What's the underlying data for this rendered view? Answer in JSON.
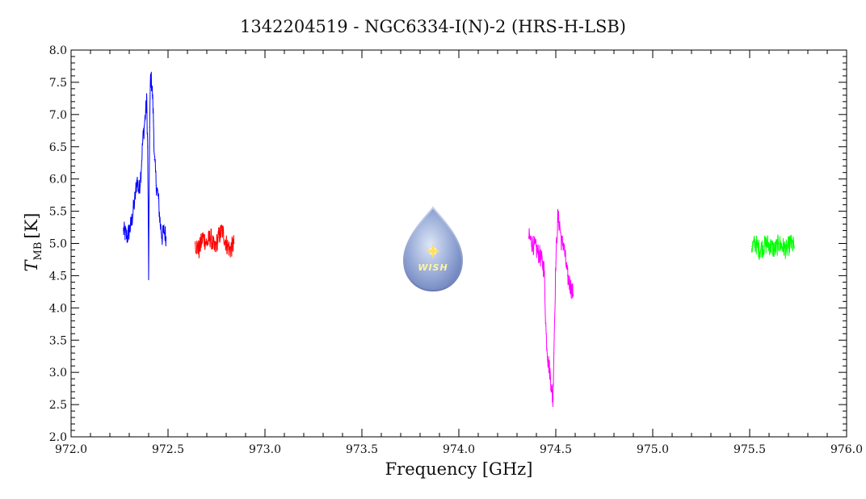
{
  "chart_data": {
    "type": "line",
    "title": "1342204519 - NGC6334-I(N)-2 (HRS-H-LSB)",
    "xlabel": "Frequency [GHz]",
    "ylabel": "T",
    "ylabel_sub": "MB",
    "ylabel_unit": "[K]",
    "xlim": [
      972.0,
      976.0
    ],
    "ylim": [
      2.0,
      8.0
    ],
    "x_ticks": [
      "972.0",
      "972.5",
      "973.0",
      "973.5",
      "974.0",
      "974.5",
      "975.0",
      "975.5",
      "976.0"
    ],
    "y_ticks": [
      "2.0",
      "2.5",
      "3.0",
      "3.5",
      "4.0",
      "4.5",
      "5.0",
      "5.5",
      "6.0",
      "6.5",
      "7.0",
      "7.5",
      "8.0"
    ],
    "grid": false,
    "logo": {
      "text": "WISH"
    },
    "series": [
      {
        "color": "#0000ff",
        "x": [
          972.27,
          972.29,
          972.31,
          972.33,
          972.34,
          972.35,
          972.36,
          972.37,
          972.38,
          972.39,
          972.395,
          972.4,
          972.405,
          972.41,
          972.415,
          972.42,
          972.425,
          972.43,
          972.44,
          972.45,
          972.46,
          972.47,
          972.48,
          972.49
        ],
        "y": [
          5.2,
          5.1,
          5.3,
          5.7,
          6.0,
          5.8,
          6.1,
          6.6,
          6.9,
          7.2,
          6.5,
          4.5,
          6.8,
          7.6,
          7.5,
          7.3,
          6.9,
          6.3,
          5.9,
          5.7,
          5.3,
          5.1,
          5.2,
          5.1
        ]
      },
      {
        "color": "#ff0000",
        "x": [
          972.64,
          972.66,
          972.68,
          972.7,
          972.72,
          972.74,
          972.76,
          972.78,
          972.8,
          972.82,
          972.84
        ],
        "y": [
          5.0,
          4.9,
          5.1,
          5.0,
          5.1,
          4.9,
          5.1,
          5.2,
          5.0,
          4.9,
          5.0
        ]
      },
      {
        "color": "#ff00ff",
        "x": [
          974.36,
          974.38,
          974.4,
          974.42,
          974.44,
          974.45,
          974.46,
          974.47,
          974.48,
          974.485,
          974.49,
          974.5,
          974.51,
          974.52,
          974.53,
          974.54,
          974.56,
          974.58,
          974.59
        ],
        "y": [
          5.1,
          5.0,
          4.9,
          4.8,
          4.6,
          3.6,
          3.2,
          3.0,
          2.7,
          2.55,
          3.3,
          4.7,
          5.4,
          5.3,
          5.0,
          5.0,
          4.5,
          4.3,
          4.2
        ]
      },
      {
        "color": "#00ff00",
        "x": [
          975.51,
          975.53,
          975.55,
          975.57,
          975.59,
          975.61,
          975.63,
          975.65,
          975.67,
          975.69,
          975.71,
          975.73
        ],
        "y": [
          4.95,
          5.0,
          4.9,
          4.95,
          5.0,
          4.95,
          4.9,
          5.0,
          4.95,
          4.9,
          5.0,
          4.95
        ]
      }
    ]
  }
}
